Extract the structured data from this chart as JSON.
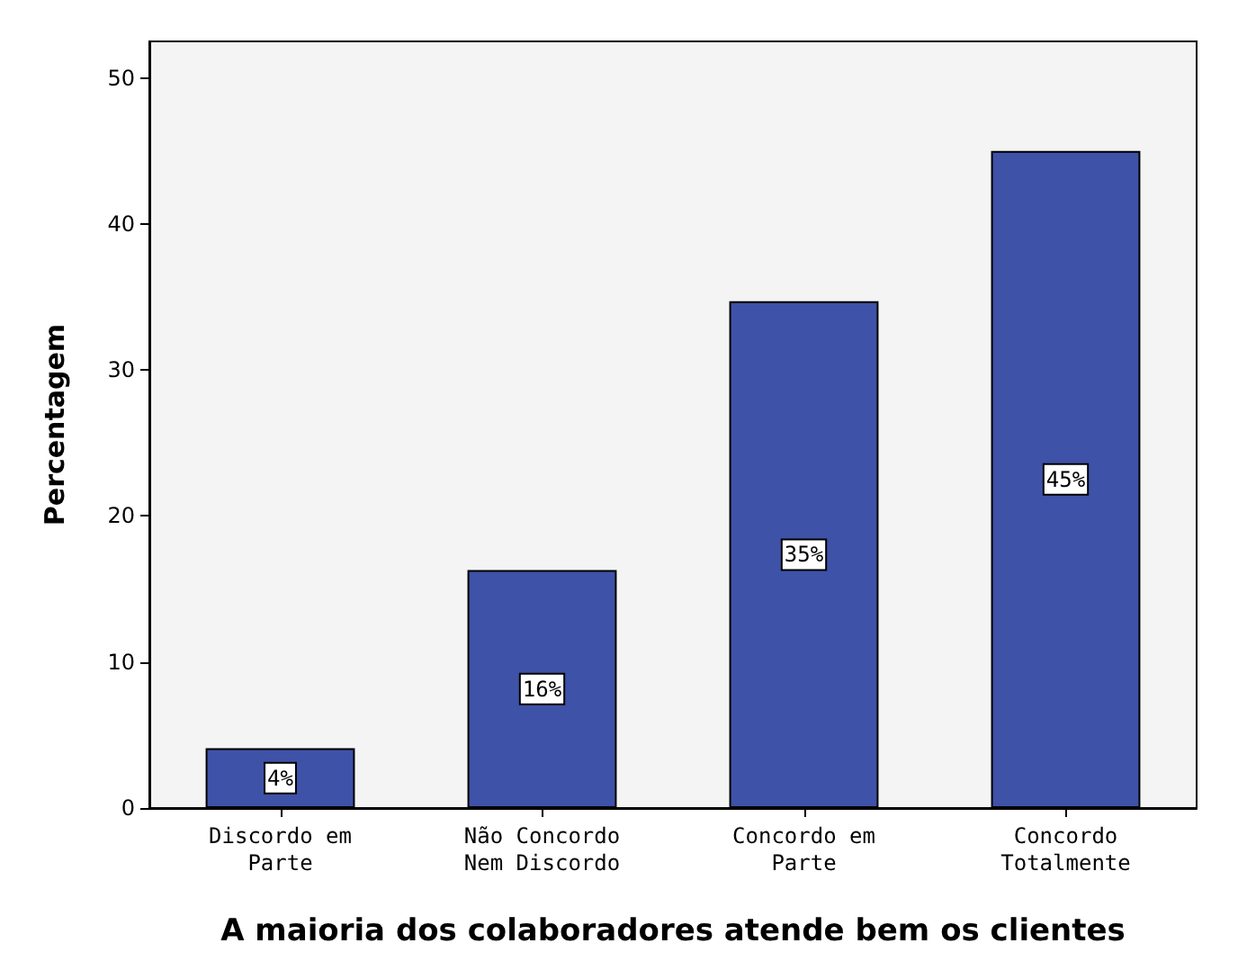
{
  "chart_data": {
    "type": "bar",
    "xlabel": "A maioria dos colaboradores atende bem os clientes",
    "ylabel": "Percentagem",
    "categories": [
      "Discordo em\nParte",
      "Não Concordo\nNem Discordo",
      "Concordo em\nParte",
      "Concordo\nTotalmente"
    ],
    "values": [
      4.1,
      16.3,
      34.7,
      45.0
    ],
    "value_labels": [
      "4%",
      "16%",
      "35%",
      "45%"
    ],
    "color": "#3e52a8",
    "ylim": [
      0,
      52.5
    ],
    "yticks": [
      0,
      10,
      20,
      30,
      40,
      50
    ],
    "grid": false
  }
}
